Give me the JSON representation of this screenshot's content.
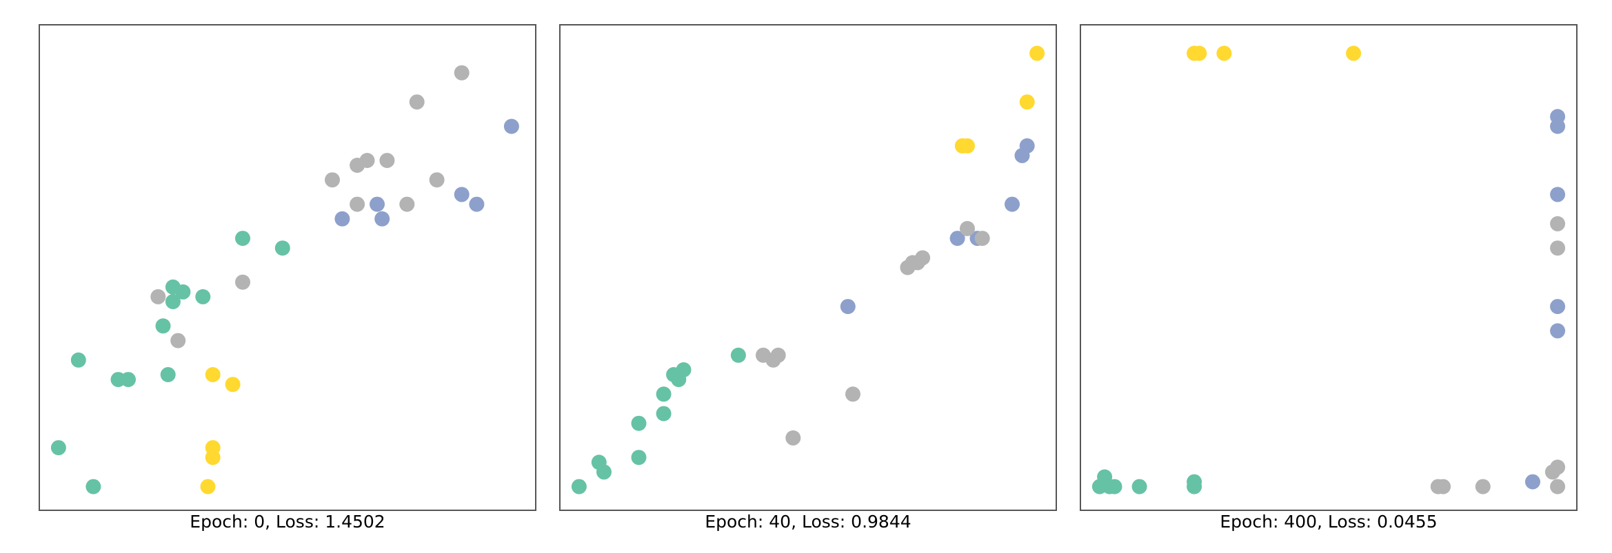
{
  "class_colors": [
    "#66c2a5",
    "#8da0cb",
    "#ffd92f",
    "#b3b3b3"
  ],
  "chart_data": [
    {
      "type": "scatter",
      "title": "Epoch: 0, Loss: 1.4502",
      "grid": false,
      "axes_visible": false,
      "xlim": [
        0,
        1
      ],
      "ylim": [
        0,
        1
      ],
      "series": [
        {
          "values": [
            [
              0.04,
              0.13
            ],
            [
              0.11,
              0.05
            ],
            [
              0.08,
              0.31
            ],
            [
              0.16,
              0.27
            ],
            [
              0.18,
              0.27
            ],
            [
              0.27,
              0.46
            ],
            [
              0.33,
              0.44
            ],
            [
              0.26,
              0.28
            ],
            [
              0.25,
              0.38
            ],
            [
              0.29,
              0.45
            ],
            [
              0.27,
              0.43
            ],
            [
              0.49,
              0.54
            ],
            [
              0.41,
              0.56
            ]
          ]
        },
        {
          "values": [
            [
              0.61,
              0.6
            ],
            [
              0.68,
              0.63
            ],
            [
              0.69,
              0.6
            ],
            [
              0.85,
              0.65
            ],
            [
              0.88,
              0.63
            ],
            [
              0.95,
              0.79
            ]
          ]
        },
        {
          "values": [
            [
              0.35,
              0.28
            ],
            [
              0.39,
              0.26
            ],
            [
              0.35,
              0.13
            ],
            [
              0.35,
              0.11
            ],
            [
              0.34,
              0.05
            ]
          ]
        },
        {
          "values": [
            [
              0.24,
              0.44
            ],
            [
              0.28,
              0.35
            ],
            [
              0.41,
              0.47
            ],
            [
              0.59,
              0.68
            ],
            [
              0.64,
              0.71
            ],
            [
              0.66,
              0.72
            ],
            [
              0.7,
              0.72
            ],
            [
              0.64,
              0.63
            ],
            [
              0.74,
              0.63
            ],
            [
              0.8,
              0.68
            ],
            [
              0.76,
              0.84
            ],
            [
              0.85,
              0.9
            ]
          ]
        }
      ]
    },
    {
      "type": "scatter",
      "title": "Epoch: 40, Loss: 0.9844",
      "grid": false,
      "axes_visible": false,
      "xlim": [
        0,
        1
      ],
      "ylim": [
        0,
        1
      ],
      "series": [
        {
          "values": [
            [
              0.04,
              0.05
            ],
            [
              0.08,
              0.1
            ],
            [
              0.09,
              0.08
            ],
            [
              0.16,
              0.11
            ],
            [
              0.16,
              0.18
            ],
            [
              0.21,
              0.2
            ],
            [
              0.21,
              0.24
            ],
            [
              0.23,
              0.28
            ],
            [
              0.24,
              0.27
            ],
            [
              0.25,
              0.29
            ],
            [
              0.36,
              0.32
            ]
          ]
        },
        {
          "values": [
            [
              0.58,
              0.42
            ],
            [
              0.8,
              0.56
            ],
            [
              0.84,
              0.56
            ],
            [
              0.91,
              0.63
            ],
            [
              0.93,
              0.73
            ],
            [
              0.94,
              0.75
            ]
          ]
        },
        {
          "values": [
            [
              0.81,
              0.75
            ],
            [
              0.82,
              0.75
            ],
            [
              0.94,
              0.84
            ],
            [
              0.96,
              0.94
            ]
          ]
        },
        {
          "values": [
            [
              0.41,
              0.32
            ],
            [
              0.43,
              0.31
            ],
            [
              0.44,
              0.32
            ],
            [
              0.47,
              0.15
            ],
            [
              0.59,
              0.24
            ],
            [
              0.7,
              0.5
            ],
            [
              0.71,
              0.51
            ],
            [
              0.72,
              0.51
            ],
            [
              0.73,
              0.52
            ],
            [
              0.82,
              0.58
            ],
            [
              0.85,
              0.56
            ]
          ]
        }
      ]
    },
    {
      "type": "scatter",
      "title": "Epoch: 400, Loss: 0.0455",
      "grid": false,
      "axes_visible": false,
      "xlim": [
        0,
        1
      ],
      "ylim": [
        0,
        1
      ],
      "series": [
        {
          "values": [
            [
              0.04,
              0.05
            ],
            [
              0.06,
              0.05
            ],
            [
              0.05,
              0.07
            ],
            [
              0.07,
              0.05
            ],
            [
              0.12,
              0.05
            ],
            [
              0.23,
              0.05
            ],
            [
              0.23,
              0.06
            ]
          ]
        },
        {
          "values": [
            [
              0.91,
              0.06
            ],
            [
              0.96,
              0.81
            ],
            [
              0.96,
              0.79
            ],
            [
              0.96,
              0.65
            ],
            [
              0.96,
              0.42
            ],
            [
              0.96,
              0.37
            ]
          ]
        },
        {
          "values": [
            [
              0.23,
              0.94
            ],
            [
              0.24,
              0.94
            ],
            [
              0.29,
              0.94
            ],
            [
              0.55,
              0.94
            ]
          ]
        },
        {
          "values": [
            [
              0.72,
              0.05
            ],
            [
              0.73,
              0.05
            ],
            [
              0.81,
              0.05
            ],
            [
              0.96,
              0.05
            ],
            [
              0.95,
              0.08
            ],
            [
              0.96,
              0.09
            ],
            [
              0.96,
              0.59
            ],
            [
              0.96,
              0.54
            ]
          ]
        }
      ]
    }
  ]
}
